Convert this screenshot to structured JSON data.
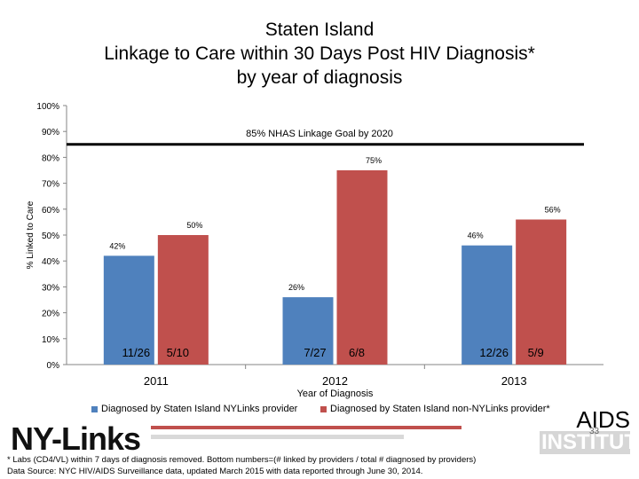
{
  "title_lines": [
    "Staten Island",
    "Linkage to Care within 30 Days Post HIV Diagnosis*",
    "by year of diagnosis"
  ],
  "chart_data": {
    "type": "bar",
    "categories": [
      "2011",
      "2012",
      "2013"
    ],
    "xlabel": "Year of Diagnosis",
    "ylabel": "% Linked to Care",
    "ylim": [
      0,
      100
    ],
    "yticks": [
      "0%",
      "10%",
      "20%",
      "30%",
      "40%",
      "50%",
      "60%",
      "70%",
      "80%",
      "90%",
      "100%"
    ],
    "series": [
      {
        "name": "Diagnosed by Staten Island NYLinks provider",
        "color": "#4f81bd",
        "values": [
          42,
          26,
          46
        ],
        "labels": [
          "42%",
          "26%",
          "46%"
        ],
        "counts": [
          "11/26",
          "7/27",
          "12/26"
        ]
      },
      {
        "name": "Diagnosed by Staten Island non-NYLinks provider*",
        "color": "#c0504d",
        "values": [
          50,
          75,
          56
        ],
        "labels": [
          "50%",
          "75%",
          "56%"
        ],
        "counts": [
          "5/10",
          "6/8",
          "5/9"
        ]
      }
    ],
    "goal_line": {
      "value": 85,
      "label": "85% NHAS Linkage Goal by 2020"
    }
  },
  "logos": {
    "nylinks": "NY-Links",
    "aids_top": "AIDS",
    "aids_bottom": "INSTITUTE"
  },
  "footnote_lines": [
    "* Labs (CD4/VL) within 7 days of diagnosis removed. Bottom numbers=(# linked by providers / total # diagnosed by providers)",
    "Data Source: NYC HIV/AIDS Surveillance data, updated March 2015 with data reported through June 30, 2014."
  ],
  "page_number": "33"
}
